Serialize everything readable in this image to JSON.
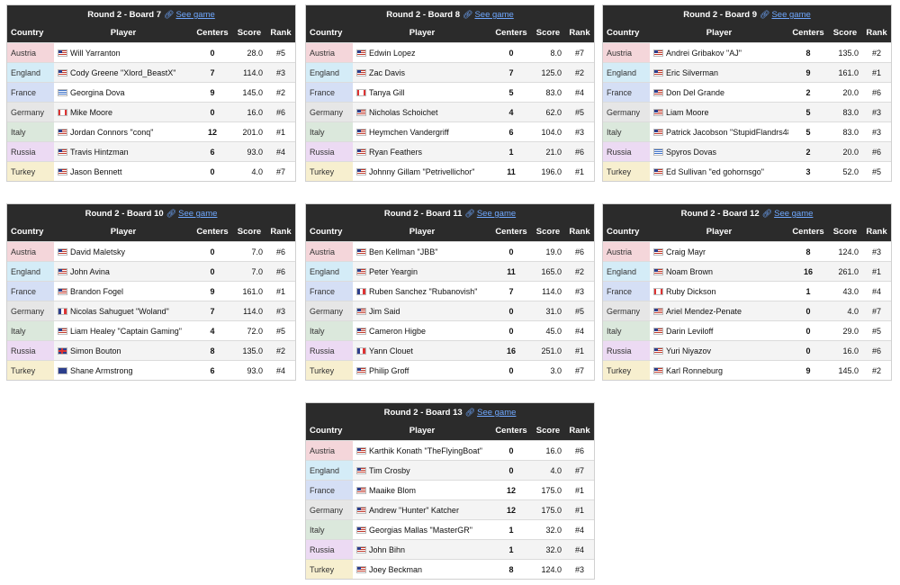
{
  "headers": {
    "country": "Country",
    "player": "Player",
    "centers": "Centers",
    "score": "Score",
    "rank": "Rank"
  },
  "link_label": "See game",
  "country_colors": {
    "Austria": "#f4d6da",
    "England": "#d4ecf7",
    "France": "#d5dff5",
    "Germany": "#e6e6e6",
    "Italy": "#dbe8dc",
    "Russia": "#ecdaf3",
    "Turkey": "#f7efcf"
  },
  "boards": [
    {
      "title": "Round 2 - Board 7",
      "rows": [
        {
          "country": "Austria",
          "flag": "us",
          "player": "Will Yarranton",
          "centers": "0",
          "score": "28.0",
          "rank": "#5"
        },
        {
          "country": "England",
          "flag": "us",
          "player": "Cody Greene \"Xlord_BeastX\"",
          "centers": "7",
          "score": "114.0",
          "rank": "#3"
        },
        {
          "country": "France",
          "flag": "gr",
          "player": "Georgina Dova",
          "centers": "9",
          "score": "145.0",
          "rank": "#2"
        },
        {
          "country": "Germany",
          "flag": "ca",
          "player": "Mike Moore",
          "centers": "0",
          "score": "16.0",
          "rank": "#6"
        },
        {
          "country": "Italy",
          "flag": "us",
          "player": "Jordan Connors \"conq\"",
          "centers": "12",
          "score": "201.0",
          "rank": "#1"
        },
        {
          "country": "Russia",
          "flag": "us",
          "player": "Travis Hintzman",
          "centers": "6",
          "score": "93.0",
          "rank": "#4"
        },
        {
          "country": "Turkey",
          "flag": "us",
          "player": "Jason Bennett",
          "centers": "0",
          "score": "4.0",
          "rank": "#7"
        }
      ]
    },
    {
      "title": "Round 2 - Board 8",
      "rows": [
        {
          "country": "Austria",
          "flag": "us",
          "player": "Edwin Lopez",
          "centers": "0",
          "score": "8.0",
          "rank": "#7"
        },
        {
          "country": "England",
          "flag": "us",
          "player": "Zac Davis",
          "centers": "7",
          "score": "125.0",
          "rank": "#2"
        },
        {
          "country": "France",
          "flag": "ca",
          "player": "Tanya Gill",
          "centers": "5",
          "score": "83.0",
          "rank": "#4"
        },
        {
          "country": "Germany",
          "flag": "us",
          "player": "Nicholas Schoichet",
          "centers": "4",
          "score": "62.0",
          "rank": "#5"
        },
        {
          "country": "Italy",
          "flag": "us",
          "player": "Heymchen Vandergriff",
          "centers": "6",
          "score": "104.0",
          "rank": "#3"
        },
        {
          "country": "Russia",
          "flag": "us",
          "player": "Ryan Feathers",
          "centers": "1",
          "score": "21.0",
          "rank": "#6"
        },
        {
          "country": "Turkey",
          "flag": "us",
          "player": "Johnny Gillam \"Petrivellichor\"",
          "centers": "11",
          "score": "196.0",
          "rank": "#1"
        }
      ]
    },
    {
      "title": "Round 2 - Board 9",
      "rows": [
        {
          "country": "Austria",
          "flag": "us",
          "player": "Andrei Gribakov \"AJ\"",
          "centers": "8",
          "score": "135.0",
          "rank": "#2"
        },
        {
          "country": "England",
          "flag": "us",
          "player": "Eric Silverman",
          "centers": "9",
          "score": "161.0",
          "rank": "#1"
        },
        {
          "country": "France",
          "flag": "us",
          "player": "Don Del Grande",
          "centers": "2",
          "score": "20.0",
          "rank": "#6"
        },
        {
          "country": "Germany",
          "flag": "us",
          "player": "Liam Moore",
          "centers": "5",
          "score": "83.0",
          "rank": "#3"
        },
        {
          "country": "Italy",
          "flag": "us",
          "player": "Patrick Jacobson \"StupidFlandrs48\"",
          "centers": "5",
          "score": "83.0",
          "rank": "#3"
        },
        {
          "country": "Russia",
          "flag": "gr",
          "player": "Spyros Dovas",
          "centers": "2",
          "score": "20.0",
          "rank": "#6"
        },
        {
          "country": "Turkey",
          "flag": "us",
          "player": "Ed Sullivan \"ed gohornsgo\"",
          "centers": "3",
          "score": "52.0",
          "rank": "#5"
        }
      ]
    },
    {
      "title": "Round 2 - Board 10",
      "rows": [
        {
          "country": "Austria",
          "flag": "us",
          "player": "David Maletsky",
          "centers": "0",
          "score": "7.0",
          "rank": "#6"
        },
        {
          "country": "England",
          "flag": "us",
          "player": "John Avina",
          "centers": "0",
          "score": "7.0",
          "rank": "#6"
        },
        {
          "country": "France",
          "flag": "us",
          "player": "Brandon Fogel",
          "centers": "9",
          "score": "161.0",
          "rank": "#1"
        },
        {
          "country": "Germany",
          "flag": "fr",
          "player": "Nicolas Sahuguet \"Woland\"",
          "centers": "7",
          "score": "114.0",
          "rank": "#3"
        },
        {
          "country": "Italy",
          "flag": "us",
          "player": "Liam Healey \"Captain Gaming\"",
          "centers": "4",
          "score": "72.0",
          "rank": "#5"
        },
        {
          "country": "Russia",
          "flag": "gb",
          "player": "Simon Bouton",
          "centers": "8",
          "score": "135.0",
          "rank": "#2"
        },
        {
          "country": "Turkey",
          "flag": "au",
          "player": "Shane Armstrong",
          "centers": "6",
          "score": "93.0",
          "rank": "#4"
        }
      ]
    },
    {
      "title": "Round 2 - Board 11",
      "rows": [
        {
          "country": "Austria",
          "flag": "us",
          "player": "Ben Kellman \"JBB\"",
          "centers": "0",
          "score": "19.0",
          "rank": "#6"
        },
        {
          "country": "England",
          "flag": "us",
          "player": "Peter Yeargin",
          "centers": "11",
          "score": "165.0",
          "rank": "#2"
        },
        {
          "country": "France",
          "flag": "fr",
          "player": "Ruben Sanchez \"Rubanovish\"",
          "centers": "7",
          "score": "114.0",
          "rank": "#3"
        },
        {
          "country": "Germany",
          "flag": "us",
          "player": "Jim Said",
          "centers": "0",
          "score": "31.0",
          "rank": "#5"
        },
        {
          "country": "Italy",
          "flag": "us",
          "player": "Cameron Higbe",
          "centers": "0",
          "score": "45.0",
          "rank": "#4"
        },
        {
          "country": "Russia",
          "flag": "fr",
          "player": "Yann Clouet",
          "centers": "16",
          "score": "251.0",
          "rank": "#1"
        },
        {
          "country": "Turkey",
          "flag": "us",
          "player": "Philip Groff",
          "centers": "0",
          "score": "3.0",
          "rank": "#7"
        }
      ]
    },
    {
      "title": "Round 2 - Board 12",
      "rows": [
        {
          "country": "Austria",
          "flag": "us",
          "player": "Craig Mayr",
          "centers": "8",
          "score": "124.0",
          "rank": "#3"
        },
        {
          "country": "England",
          "flag": "us",
          "player": "Noam Brown",
          "centers": "16",
          "score": "261.0",
          "rank": "#1"
        },
        {
          "country": "France",
          "flag": "ca",
          "player": "Ruby Dickson",
          "centers": "1",
          "score": "43.0",
          "rank": "#4"
        },
        {
          "country": "Germany",
          "flag": "us",
          "player": "Ariel Mendez-Penate",
          "centers": "0",
          "score": "4.0",
          "rank": "#7"
        },
        {
          "country": "Italy",
          "flag": "us",
          "player": "Darin Leviloff",
          "centers": "0",
          "score": "29.0",
          "rank": "#5"
        },
        {
          "country": "Russia",
          "flag": "us",
          "player": "Yuri Niyazov",
          "centers": "0",
          "score": "16.0",
          "rank": "#6"
        },
        {
          "country": "Turkey",
          "flag": "us",
          "player": "Karl Ronneburg",
          "centers": "9",
          "score": "145.0",
          "rank": "#2"
        }
      ]
    },
    {
      "title": "Round 2 - Board 13",
      "rows": [
        {
          "country": "Austria",
          "flag": "us",
          "player": "Karthik Konath \"TheFlyingBoat\"",
          "centers": "0",
          "score": "16.0",
          "rank": "#6"
        },
        {
          "country": "England",
          "flag": "us",
          "player": "Tim Crosby",
          "centers": "0",
          "score": "4.0",
          "rank": "#7"
        },
        {
          "country": "France",
          "flag": "us",
          "player": "Maaike Blom",
          "centers": "12",
          "score": "175.0",
          "rank": "#1"
        },
        {
          "country": "Germany",
          "flag": "us",
          "player": "Andrew \"Hunter\" Katcher",
          "centers": "12",
          "score": "175.0",
          "rank": "#1"
        },
        {
          "country": "Italy",
          "flag": "us",
          "player": "Georgias Mallas \"MasterGR\"",
          "centers": "1",
          "score": "32.0",
          "rank": "#4"
        },
        {
          "country": "Russia",
          "flag": "us",
          "player": "John Bihn",
          "centers": "1",
          "score": "32.0",
          "rank": "#4"
        },
        {
          "country": "Turkey",
          "flag": "us",
          "player": "Joey Beckman",
          "centers": "8",
          "score": "124.0",
          "rank": "#3"
        }
      ]
    }
  ]
}
